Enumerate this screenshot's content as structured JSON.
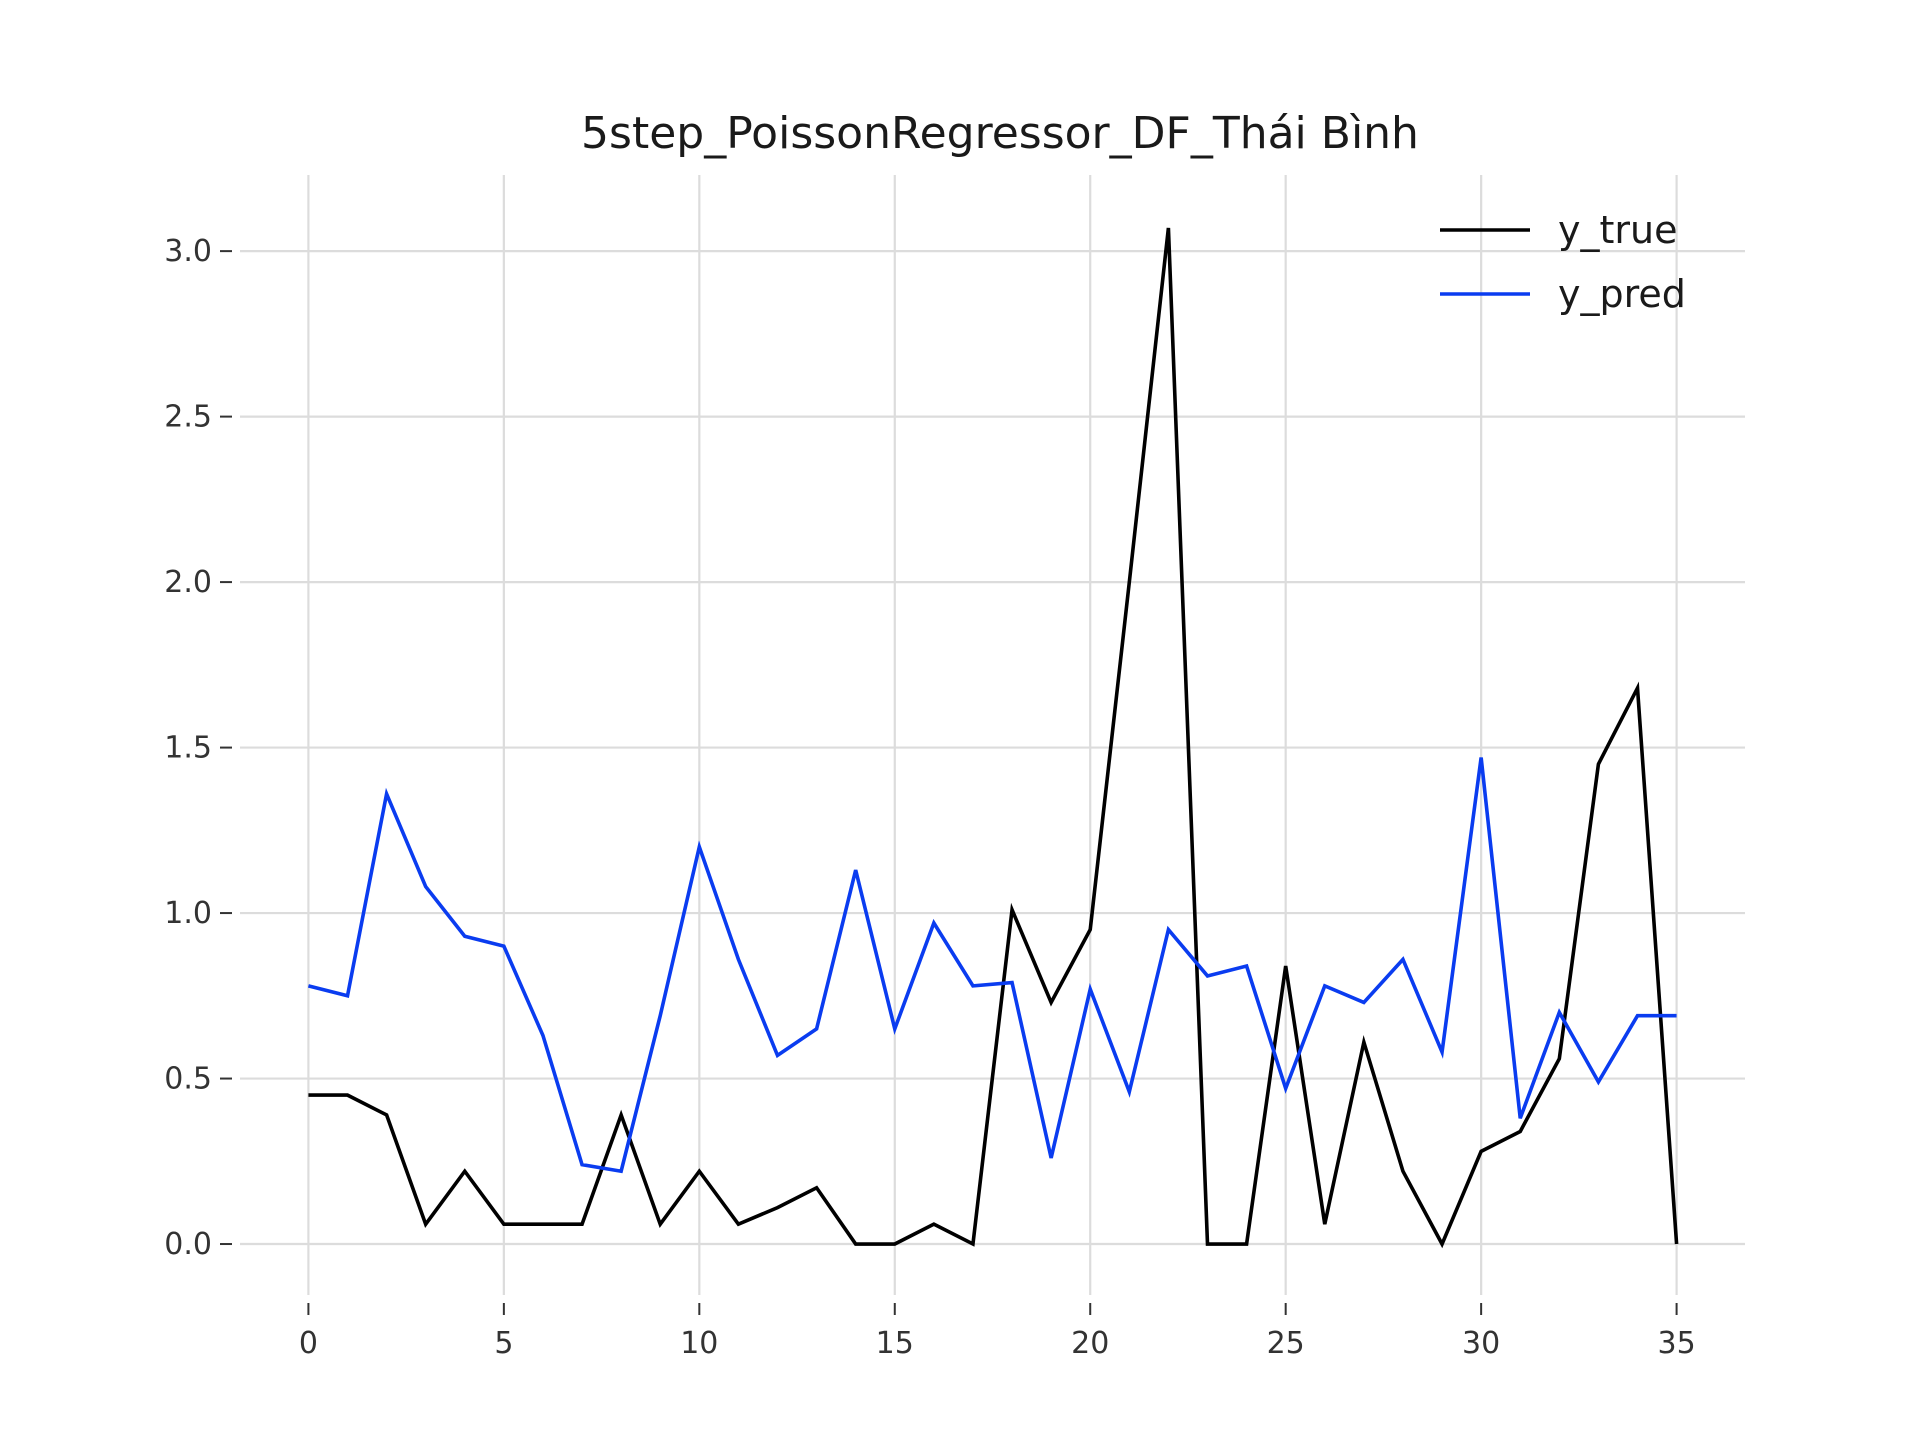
{
  "chart_data": {
    "type": "line",
    "title": "5step_PoissonRegressor_DF_Thái Bình",
    "xlabel": "",
    "ylabel": "",
    "xlim": [
      -1.75,
      36.75
    ],
    "ylim": [
      -0.154,
      3.23
    ],
    "xticks": [
      0,
      5,
      10,
      15,
      20,
      25,
      30,
      35
    ],
    "yticks": [
      0.0,
      0.5,
      1.0,
      1.5,
      2.0,
      2.5,
      3.0
    ],
    "ytick_labels": [
      "0.0",
      "0.5",
      "1.0",
      "1.5",
      "2.0",
      "2.5",
      "3.0"
    ],
    "grid": true,
    "legend_position": "top-right",
    "x": [
      0,
      1,
      2,
      3,
      4,
      5,
      6,
      7,
      8,
      9,
      10,
      11,
      12,
      13,
      14,
      15,
      16,
      17,
      18,
      19,
      20,
      21,
      22,
      23,
      24,
      25,
      26,
      27,
      28,
      29,
      30,
      31,
      32,
      33,
      34,
      35
    ],
    "series": [
      {
        "name": "y_true",
        "color": "#000000",
        "values": [
          0.45,
          0.45,
          0.39,
          0.06,
          0.22,
          0.06,
          0.06,
          0.06,
          0.39,
          0.06,
          0.22,
          0.06,
          0.11,
          0.17,
          0.0,
          0.0,
          0.06,
          0.0,
          1.01,
          0.73,
          0.95,
          2.0,
          3.07,
          0.0,
          0.0,
          0.84,
          0.06,
          0.61,
          0.22,
          0.0,
          0.28,
          0.34,
          0.56,
          1.45,
          1.68,
          0.0
        ]
      },
      {
        "name": "y_pred",
        "color": "#0a3cf0",
        "values": [
          0.78,
          0.75,
          1.36,
          1.08,
          0.93,
          0.9,
          0.63,
          0.24,
          0.22,
          0.69,
          1.2,
          0.86,
          0.57,
          0.65,
          1.13,
          0.65,
          0.97,
          0.78,
          0.79,
          0.26,
          0.77,
          0.46,
          0.95,
          0.81,
          0.84,
          0.47,
          0.78,
          0.73,
          0.86,
          0.58,
          1.47,
          0.38,
          0.7,
          0.49,
          0.69,
          0.69
        ]
      }
    ]
  }
}
